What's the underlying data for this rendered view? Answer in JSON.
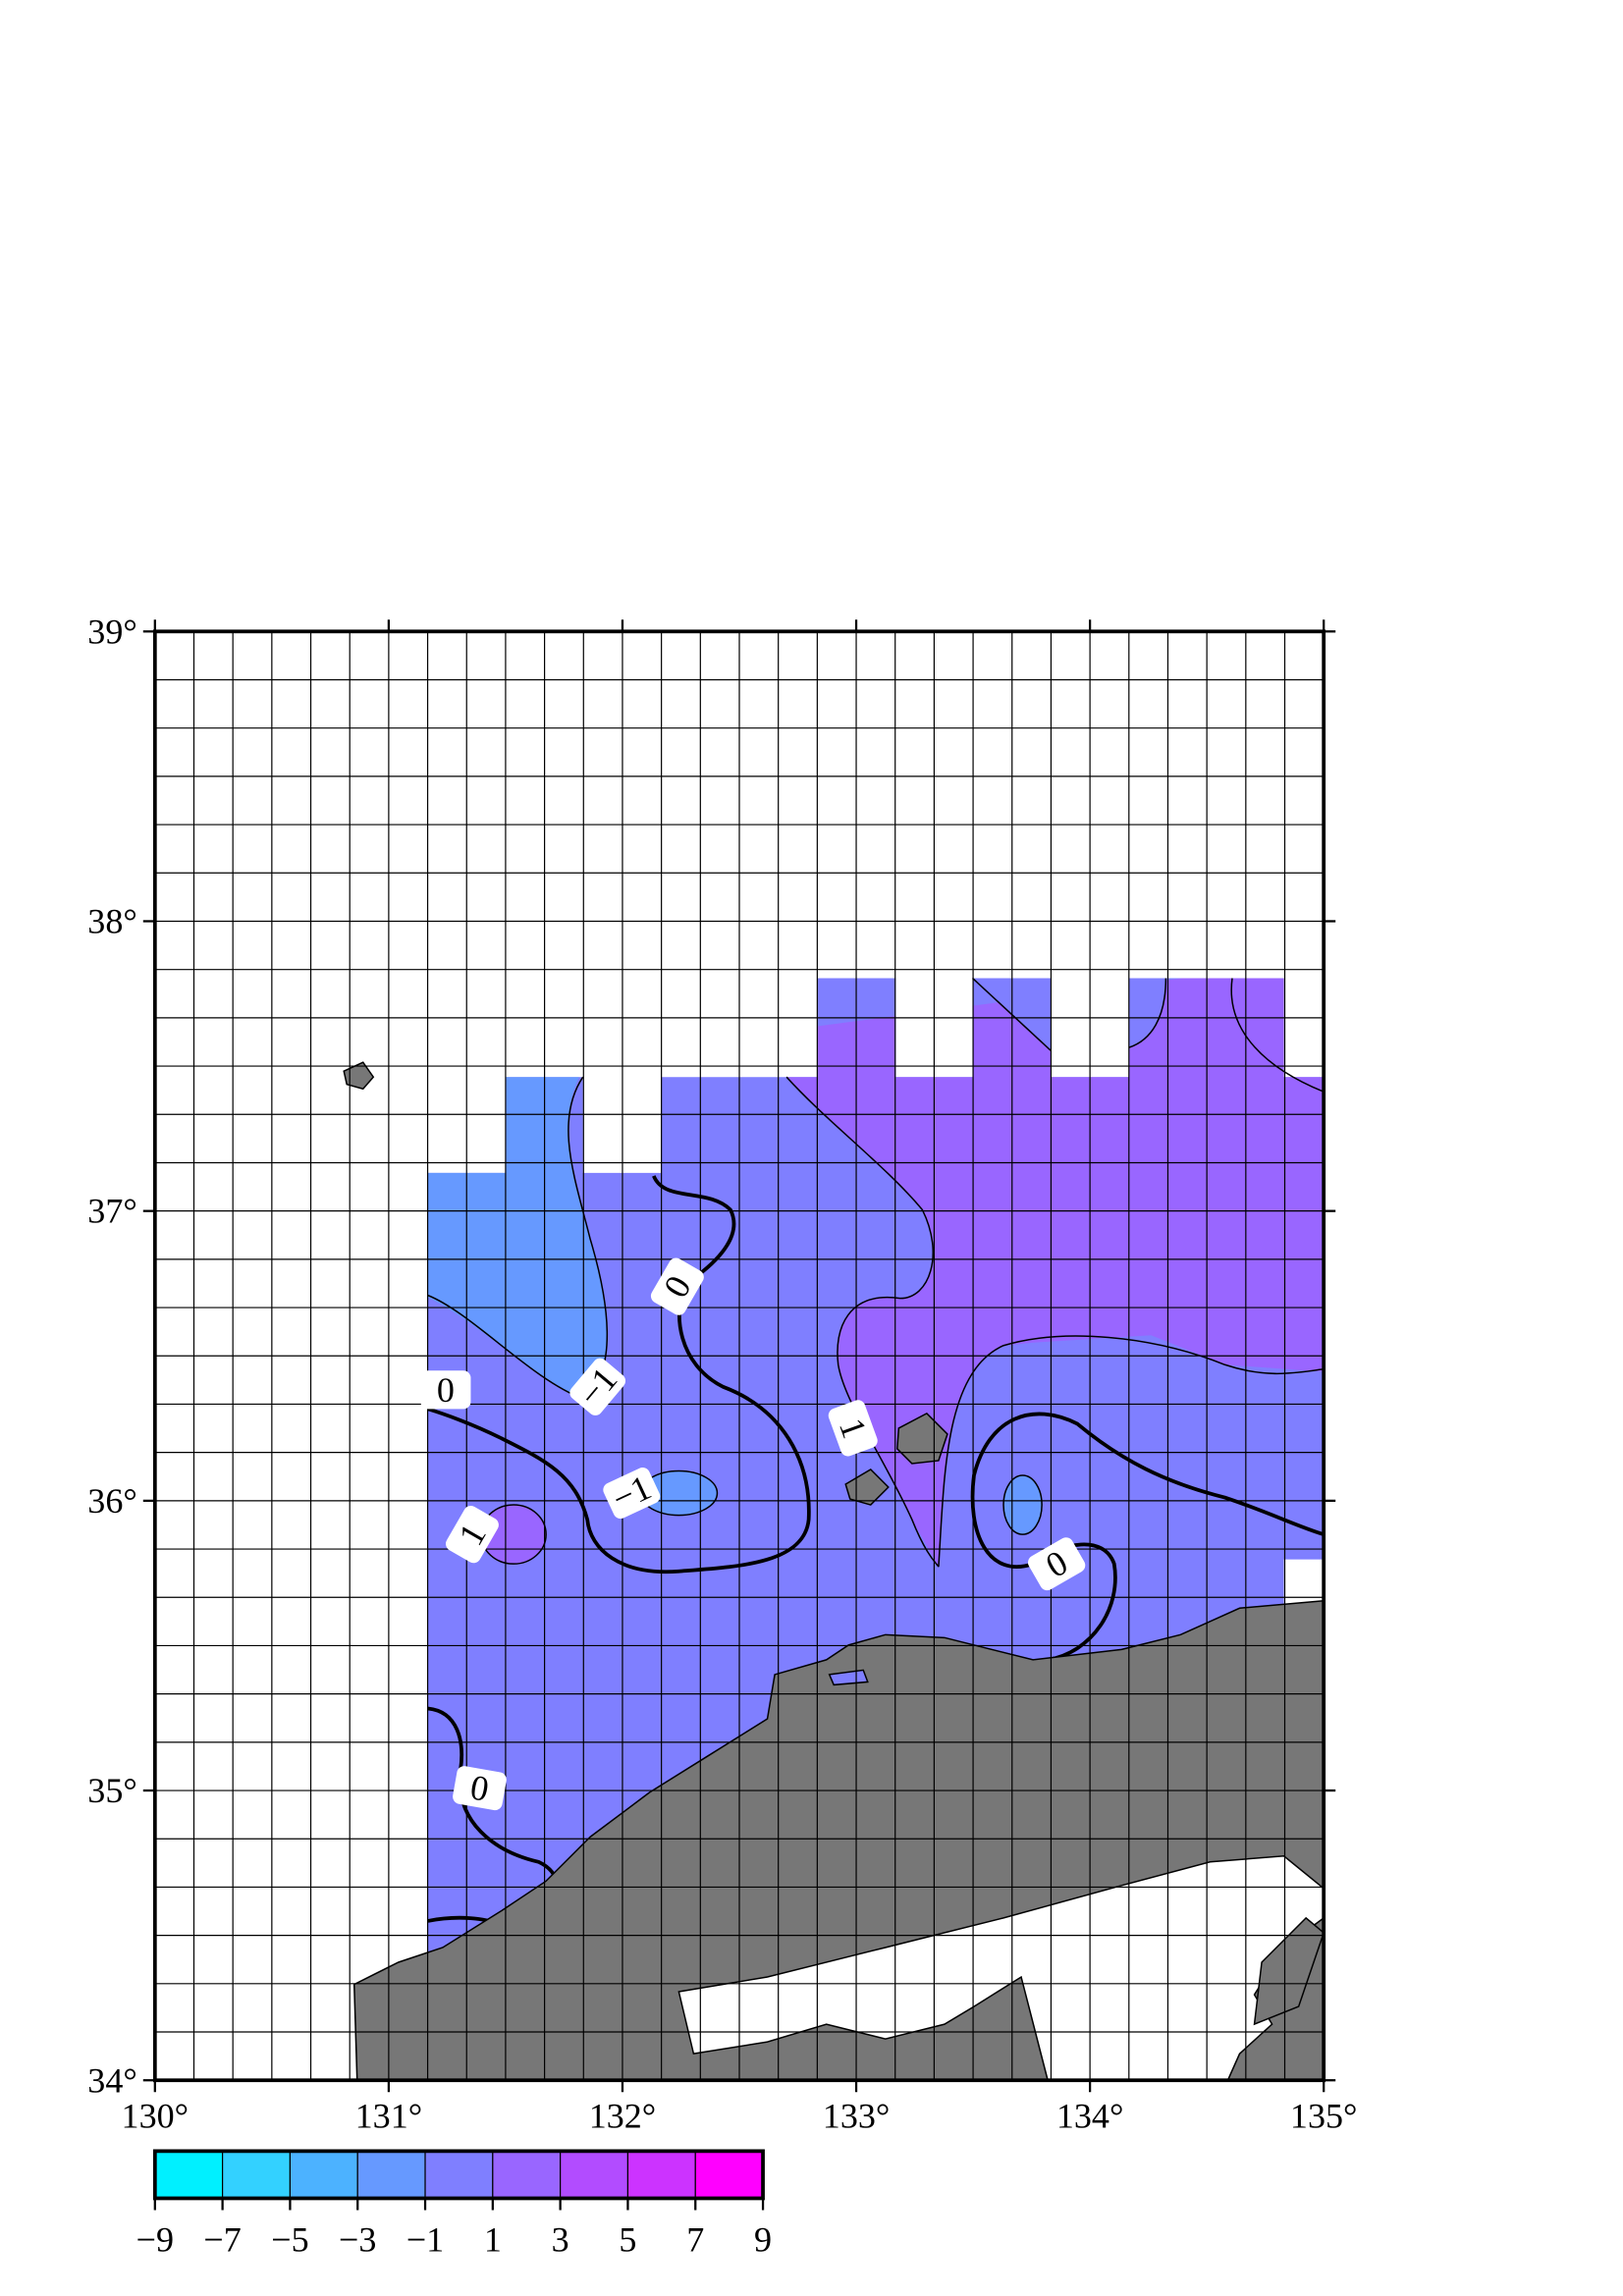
{
  "map": {
    "xlim": [
      130,
      135
    ],
    "ylim": [
      34,
      39
    ],
    "xticks": [
      {
        "value": 130,
        "label": "130°"
      },
      {
        "value": 131,
        "label": "131°"
      },
      {
        "value": 132,
        "label": "132°"
      },
      {
        "value": 133,
        "label": "133°"
      },
      {
        "value": 134,
        "label": "134°"
      },
      {
        "value": 135,
        "label": "135°"
      }
    ],
    "yticks": [
      {
        "value": 34,
        "label": "34°"
      },
      {
        "value": 35,
        "label": "35°"
      },
      {
        "value": 36,
        "label": "36°"
      },
      {
        "value": 37,
        "label": "37°"
      },
      {
        "value": 38,
        "label": "38°"
      },
      {
        "value": 39,
        "label": "39°"
      }
    ],
    "grid": true,
    "colorbar": {
      "ticks": [
        {
          "value": -9,
          "label": "−9"
        },
        {
          "value": -7,
          "label": "−7"
        },
        {
          "value": -5,
          "label": "−5"
        },
        {
          "value": -3,
          "label": "−3"
        },
        {
          "value": -1,
          "label": "−1"
        },
        1,
        3,
        5,
        7,
        9
      ],
      "colors": [
        "#00f0ff",
        "#33d1ff",
        "#4cb2ff",
        "#6699ff",
        "#7f7fff",
        "#9966ff",
        "#b24cff",
        "#cc33ff",
        "#ff00ff"
      ]
    },
    "contour_labels": [
      0,
      0,
      {
        "value": -1,
        "label": "−1"
      },
      {
        "value": -1,
        "label": "−1"
      },
      1,
      1,
      0,
      0
    ]
  }
}
